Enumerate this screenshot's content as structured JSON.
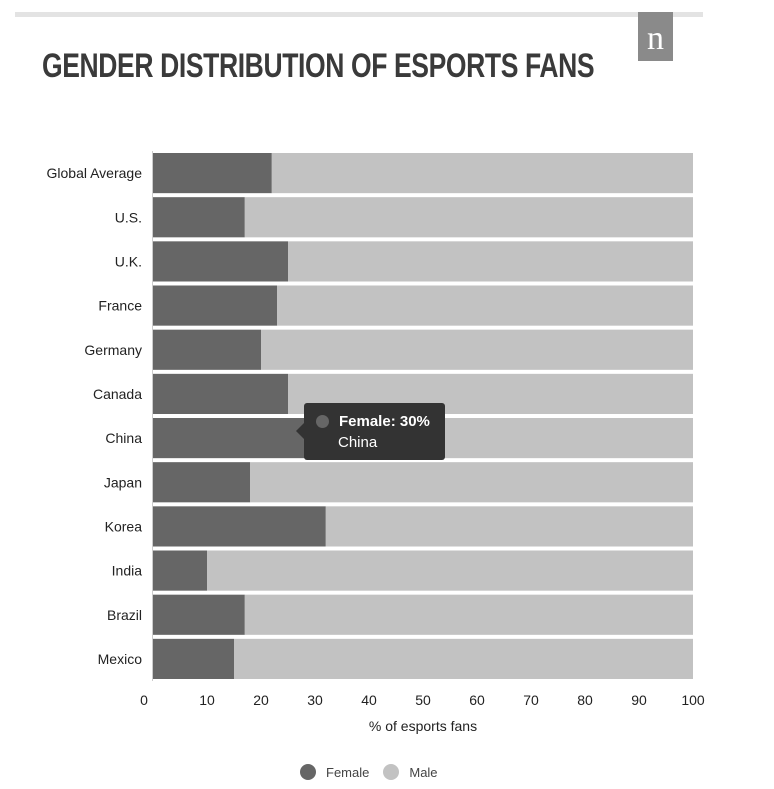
{
  "title": "GENDER DISTRIBUTION OF ESPORTS FANS",
  "logo": {
    "letter": "n"
  },
  "tooltip": {
    "series_line": "Female: 30%",
    "category": "China"
  },
  "colors": {
    "female": "#666666",
    "male": "#c2c2c2",
    "tooltip_bg": "#333333"
  },
  "chart_data": {
    "type": "bar",
    "orientation": "horizontal",
    "stacked": true,
    "categories": [
      "Global Average",
      "U.S.",
      "U.K.",
      "France",
      "Germany",
      "Canada",
      "China",
      "Japan",
      "Korea",
      "India",
      "Brazil",
      "Mexico"
    ],
    "series": [
      {
        "name": "Female",
        "values": [
          22,
          17,
          25,
          23,
          20,
          25,
          30,
          18,
          32,
          10,
          17,
          15
        ]
      },
      {
        "name": "Male",
        "values": [
          78,
          83,
          75,
          77,
          80,
          75,
          70,
          82,
          68,
          90,
          83,
          85
        ]
      }
    ],
    "xlabel": "% of esports fans",
    "ylabel": "",
    "xlim": [
      0,
      100
    ],
    "xticks": [
      0,
      10,
      20,
      30,
      40,
      50,
      60,
      70,
      80,
      90,
      100
    ],
    "grid": false,
    "legend": "bottom-center"
  }
}
